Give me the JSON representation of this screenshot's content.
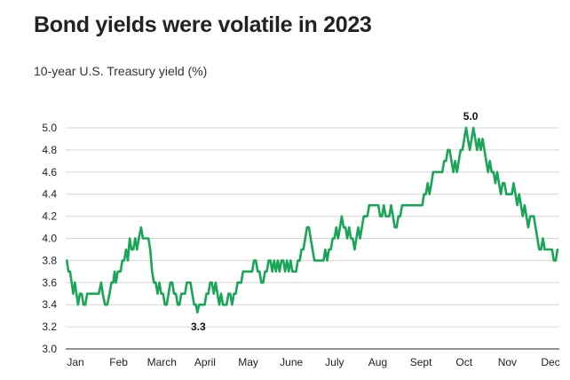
{
  "chart_data": {
    "type": "line",
    "title": "Bond yields were volatile in 2023",
    "subtitle": "10-year U.S. Treasury yield (%)",
    "xlabel": "",
    "ylabel": "",
    "ylim": [
      3.0,
      5.0
    ],
    "yticks": [
      "5.0",
      "4.8",
      "4.6",
      "4.4",
      "4.2",
      "4.0",
      "3.8",
      "3.6",
      "3.4",
      "3.2",
      "3.0"
    ],
    "xticks": [
      "Jan",
      "Feb",
      "March",
      "April",
      "May",
      "June",
      "July",
      "Aug",
      "Sept",
      "Oct",
      "Nov",
      "Dec"
    ],
    "grid": true,
    "colors": {
      "line": "#1aa557",
      "grid": "#d6d6d6",
      "axis": "#222222"
    },
    "annotations": [
      {
        "label": "5.0",
        "x": 9.95,
        "y": 5.0,
        "position": "above"
      },
      {
        "label": "3.3",
        "x": 3.45,
        "y": 3.33,
        "position": "below"
      }
    ],
    "series": [
      {
        "values": [
          [
            0.05,
            3.8
          ],
          [
            0.12,
            3.7
          ],
          [
            0.19,
            3.7
          ],
          [
            0.26,
            3.6
          ],
          [
            0.33,
            3.5
          ],
          [
            0.4,
            3.6
          ],
          [
            0.47,
            3.5
          ],
          [
            0.54,
            3.4
          ],
          [
            0.62,
            3.5
          ],
          [
            0.7,
            3.5
          ],
          [
            0.78,
            3.4
          ],
          [
            0.86,
            3.4
          ],
          [
            0.94,
            3.5
          ],
          [
            1.05,
            3.5
          ],
          [
            1.2,
            3.5
          ],
          [
            1.35,
            3.5
          ],
          [
            1.45,
            3.5
          ],
          [
            1.55,
            3.6
          ],
          [
            1.62,
            3.5
          ],
          [
            1.72,
            3.4
          ],
          [
            1.82,
            3.4
          ],
          [
            1.92,
            3.5
          ],
          [
            2.0,
            3.6
          ],
          [
            2.08,
            3.6
          ],
          [
            2.14,
            3.7
          ],
          [
            2.2,
            3.6
          ],
          [
            2.28,
            3.7
          ],
          [
            2.4,
            3.7
          ],
          [
            2.48,
            3.8
          ],
          [
            2.56,
            3.8
          ],
          [
            2.64,
            3.9
          ],
          [
            2.72,
            3.8
          ],
          [
            2.8,
            4.0
          ],
          [
            2.88,
            3.9
          ],
          [
            2.96,
            3.9
          ],
          [
            3.04,
            4.0
          ],
          [
            3.12,
            3.9
          ],
          [
            3.2,
            4.0
          ],
          [
            3.3,
            4.1
          ],
          [
            3.38,
            4.0
          ],
          [
            3.46,
            4.0
          ],
          [
            3.54,
            4.0
          ],
          [
            3.62,
            4.0
          ],
          [
            3.7,
            3.9
          ],
          [
            3.78,
            3.7
          ],
          [
            3.86,
            3.6
          ],
          [
            3.94,
            3.6
          ],
          [
            4.02,
            3.5
          ],
          [
            4.1,
            3.6
          ],
          [
            4.18,
            3.5
          ],
          [
            4.26,
            3.5
          ],
          [
            4.34,
            3.4
          ],
          [
            4.42,
            3.4
          ],
          [
            4.5,
            3.5
          ],
          [
            4.58,
            3.6
          ],
          [
            4.66,
            3.6
          ],
          [
            4.74,
            3.5
          ],
          [
            4.82,
            3.5
          ],
          [
            4.9,
            3.4
          ],
          [
            4.98,
            3.4
          ],
          [
            5.06,
            3.5
          ],
          [
            5.14,
            3.5
          ],
          [
            5.22,
            3.5
          ],
          [
            5.3,
            3.6
          ],
          [
            5.38,
            3.6
          ],
          [
            5.46,
            3.6
          ],
          [
            5.54,
            3.5
          ],
          [
            5.62,
            3.4
          ],
          [
            5.7,
            3.4
          ],
          [
            5.76,
            3.33
          ],
          [
            5.84,
            3.4
          ],
          [
            5.92,
            3.4
          ],
          [
            6.0,
            3.4
          ],
          [
            6.08,
            3.4
          ],
          [
            6.16,
            3.5
          ],
          [
            6.24,
            3.5
          ],
          [
            6.32,
            3.6
          ],
          [
            6.4,
            3.6
          ],
          [
            6.48,
            3.5
          ],
          [
            6.56,
            3.6
          ],
          [
            6.64,
            3.5
          ],
          [
            6.72,
            3.4
          ],
          [
            6.8,
            3.5
          ],
          [
            6.88,
            3.4
          ],
          [
            6.96,
            3.4
          ],
          [
            7.04,
            3.4
          ],
          [
            7.12,
            3.5
          ],
          [
            7.2,
            3.5
          ],
          [
            7.28,
            3.4
          ],
          [
            7.36,
            3.5
          ],
          [
            7.44,
            3.5
          ],
          [
            7.52,
            3.6
          ],
          [
            7.6,
            3.6
          ],
          [
            7.68,
            3.6
          ],
          [
            7.76,
            3.7
          ],
          [
            7.84,
            3.7
          ],
          [
            7.92,
            3.7
          ],
          [
            8.0,
            3.7
          ],
          [
            8.08,
            3.7
          ],
          [
            8.16,
            3.7
          ],
          [
            8.24,
            3.8
          ],
          [
            8.32,
            3.8
          ],
          [
            8.4,
            3.7
          ],
          [
            8.48,
            3.7
          ],
          [
            8.56,
            3.6
          ],
          [
            8.64,
            3.6
          ],
          [
            8.72,
            3.7
          ],
          [
            8.8,
            3.7
          ],
          [
            8.88,
            3.8
          ],
          [
            8.96,
            3.8
          ],
          [
            9.04,
            3.7
          ],
          [
            9.12,
            3.8
          ],
          [
            9.2,
            3.7
          ],
          [
            9.28,
            3.8
          ],
          [
            9.36,
            3.7
          ],
          [
            9.44,
            3.8
          ],
          [
            9.52,
            3.8
          ],
          [
            9.6,
            3.7
          ],
          [
            9.68,
            3.8
          ],
          [
            9.76,
            3.7
          ],
          [
            9.84,
            3.8
          ],
          [
            9.92,
            3.7
          ],
          [
            10.0,
            3.7
          ],
          [
            10.08,
            3.7
          ],
          [
            10.16,
            3.8
          ],
          [
            10.24,
            3.8
          ],
          [
            10.32,
            3.9
          ],
          [
            10.4,
            3.9
          ],
          [
            10.48,
            4.0
          ],
          [
            10.56,
            4.1
          ],
          [
            10.64,
            4.1
          ],
          [
            10.72,
            4.0
          ],
          [
            10.8,
            3.9
          ],
          [
            10.88,
            3.8
          ],
          [
            10.96,
            3.8
          ],
          [
            11.04,
            3.8
          ],
          [
            11.12,
            3.8
          ],
          [
            11.2,
            3.8
          ],
          [
            11.28,
            3.8
          ],
          [
            11.36,
            3.9
          ],
          [
            11.44,
            3.8
          ],
          [
            11.52,
            3.9
          ],
          [
            11.6,
            3.9
          ],
          [
            11.68,
            4.0
          ],
          [
            11.76,
            4.0
          ],
          [
            11.84,
            4.1
          ],
          [
            11.92,
            4.0
          ],
          [
            12.0,
            4.1
          ],
          [
            12.08,
            4.2
          ],
          [
            12.16,
            4.1
          ],
          [
            12.24,
            4.1
          ],
          [
            12.32,
            4.0
          ],
          [
            12.4,
            4.1
          ],
          [
            12.48,
            4.0
          ],
          [
            12.56,
            4.0
          ],
          [
            12.64,
            3.9
          ],
          [
            12.72,
            4.0
          ],
          [
            12.8,
            4.1
          ],
          [
            12.88,
            4.0
          ],
          [
            12.96,
            4.1
          ],
          [
            13.04,
            4.2
          ],
          [
            13.12,
            4.2
          ],
          [
            13.2,
            4.2
          ],
          [
            13.28,
            4.3
          ],
          [
            13.36,
            4.3
          ],
          [
            13.44,
            4.3
          ],
          [
            13.52,
            4.3
          ],
          [
            13.6,
            4.3
          ],
          [
            13.68,
            4.3
          ],
          [
            13.76,
            4.2
          ],
          [
            13.84,
            4.2
          ],
          [
            13.92,
            4.3
          ],
          [
            14.0,
            4.2
          ],
          [
            14.08,
            4.2
          ],
          [
            14.16,
            4.2
          ],
          [
            14.24,
            4.3
          ],
          [
            14.32,
            4.2
          ],
          [
            14.4,
            4.1
          ],
          [
            14.48,
            4.1
          ],
          [
            14.56,
            4.2
          ],
          [
            14.64,
            4.2
          ],
          [
            14.72,
            4.3
          ],
          [
            14.8,
            4.3
          ],
          [
            14.88,
            4.3
          ],
          [
            14.96,
            4.3
          ],
          [
            15.04,
            4.3
          ],
          [
            15.12,
            4.3
          ],
          [
            15.2,
            4.3
          ],
          [
            15.28,
            4.3
          ],
          [
            15.36,
            4.3
          ],
          [
            15.44,
            4.3
          ],
          [
            15.52,
            4.3
          ],
          [
            15.6,
            4.3
          ],
          [
            15.68,
            4.4
          ],
          [
            15.76,
            4.4
          ],
          [
            15.84,
            4.5
          ],
          [
            15.92,
            4.4
          ],
          [
            16.0,
            4.5
          ],
          [
            16.08,
            4.6
          ],
          [
            16.16,
            4.6
          ],
          [
            16.24,
            4.6
          ],
          [
            16.32,
            4.6
          ],
          [
            16.4,
            4.6
          ],
          [
            16.48,
            4.6
          ],
          [
            16.56,
            4.7
          ],
          [
            16.64,
            4.7
          ],
          [
            16.72,
            4.8
          ],
          [
            16.8,
            4.8
          ],
          [
            16.88,
            4.7
          ],
          [
            16.96,
            4.6
          ],
          [
            17.04,
            4.7
          ],
          [
            17.12,
            4.6
          ],
          [
            17.2,
            4.7
          ],
          [
            17.28,
            4.8
          ],
          [
            17.36,
            4.8
          ],
          [
            17.44,
            4.9
          ],
          [
            17.52,
            5.0
          ],
          [
            17.6,
            4.9
          ],
          [
            17.68,
            4.8
          ],
          [
            17.76,
            4.9
          ],
          [
            17.84,
            5.0
          ],
          [
            17.92,
            4.9
          ],
          [
            18.0,
            4.8
          ],
          [
            18.08,
            4.9
          ],
          [
            18.16,
            4.8
          ],
          [
            18.24,
            4.9
          ],
          [
            18.32,
            4.8
          ],
          [
            18.4,
            4.7
          ],
          [
            18.48,
            4.6
          ],
          [
            18.56,
            4.7
          ],
          [
            18.64,
            4.6
          ],
          [
            18.72,
            4.6
          ],
          [
            18.8,
            4.5
          ],
          [
            18.88,
            4.6
          ],
          [
            18.96,
            4.5
          ],
          [
            19.04,
            4.4
          ],
          [
            19.12,
            4.5
          ],
          [
            19.2,
            4.5
          ],
          [
            19.28,
            4.4
          ],
          [
            19.36,
            4.4
          ],
          [
            19.44,
            4.4
          ],
          [
            19.52,
            4.4
          ],
          [
            19.6,
            4.5
          ],
          [
            19.68,
            4.4
          ],
          [
            19.76,
            4.3
          ],
          [
            19.84,
            4.4
          ],
          [
            19.92,
            4.3
          ],
          [
            20.0,
            4.2
          ],
          [
            20.08,
            4.3
          ],
          [
            20.16,
            4.2
          ],
          [
            20.24,
            4.1
          ],
          [
            20.32,
            4.2
          ],
          [
            20.4,
            4.2
          ],
          [
            20.48,
            4.2
          ],
          [
            20.56,
            4.1
          ],
          [
            20.64,
            4.0
          ],
          [
            20.72,
            3.9
          ],
          [
            20.8,
            3.9
          ],
          [
            20.88,
            4.0
          ],
          [
            20.96,
            3.9
          ],
          [
            21.04,
            3.9
          ],
          [
            21.12,
            3.9
          ],
          [
            21.2,
            3.9
          ],
          [
            21.28,
            3.9
          ],
          [
            21.36,
            3.8
          ],
          [
            21.44,
            3.8
          ],
          [
            21.52,
            3.9
          ]
        ]
      }
    ]
  }
}
